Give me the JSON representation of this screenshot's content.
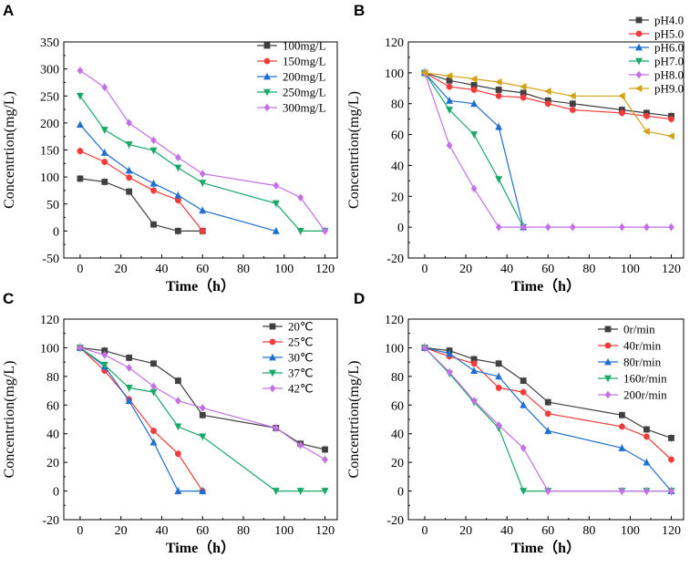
{
  "chart_data": [
    {
      "type": "line",
      "panel": "A",
      "xlabel": "Time（h）",
      "ylabel": "Concentrtion(mg/L)",
      "xlim": [
        -8,
        126
      ],
      "ylim": [
        -50,
        350
      ],
      "xticks": [
        0,
        20,
        40,
        60,
        80,
        100,
        120
      ],
      "yticks": [
        -50,
        0,
        50,
        100,
        150,
        200,
        250,
        300,
        350
      ],
      "x": [
        0,
        12,
        24,
        36,
        48,
        60,
        96,
        108,
        120
      ],
      "legend": "top-right",
      "series": [
        {
          "name": "100mg/L",
          "color": "#404040",
          "marker": "square",
          "x": [
            0,
            12,
            24,
            36,
            48,
            60
          ],
          "values": [
            97,
            91,
            73,
            12,
            0,
            0
          ]
        },
        {
          "name": "150mg/L",
          "color": "#f03c3c",
          "marker": "circle",
          "x": [
            0,
            12,
            24,
            36,
            48,
            60
          ],
          "values": [
            148,
            128,
            99,
            75,
            57,
            0
          ]
        },
        {
          "name": "200mg/L",
          "color": "#1f6fd0",
          "marker": "triangle-up",
          "x": [
            0,
            12,
            24,
            36,
            48,
            60,
            96
          ],
          "values": [
            197,
            145,
            112,
            88,
            66,
            38,
            0
          ]
        },
        {
          "name": "250mg/L",
          "color": "#19a867",
          "marker": "triangle-down",
          "x": [
            0,
            12,
            24,
            36,
            48,
            60,
            96,
            108,
            120
          ],
          "values": [
            250,
            187,
            160,
            149,
            117,
            89,
            51,
            0,
            0
          ]
        },
        {
          "name": "300mg/L",
          "color": "#c46fe6",
          "marker": "diamond",
          "x": [
            0,
            12,
            24,
            36,
            48,
            60,
            96,
            108,
            120
          ],
          "values": [
            297,
            266,
            200,
            168,
            136,
            106,
            84,
            62,
            0
          ]
        }
      ]
    },
    {
      "type": "line",
      "panel": "B",
      "xlabel": "Time（h）",
      "ylabel": "Concentrtion(mg/L)",
      "xlim": [
        -8,
        126
      ],
      "ylim": [
        -20,
        120
      ],
      "xticks": [
        0,
        20,
        40,
        60,
        80,
        100,
        120
      ],
      "yticks": [
        -20,
        0,
        20,
        40,
        60,
        80,
        100,
        120
      ],
      "legend": "top-right",
      "series": [
        {
          "name": "pH4.0",
          "color": "#404040",
          "marker": "square",
          "x": [
            0,
            12,
            24,
            36,
            48,
            60,
            72,
            96,
            108,
            120
          ],
          "values": [
            100,
            95,
            92,
            89,
            87,
            82,
            80,
            76,
            74,
            72
          ]
        },
        {
          "name": "pH5.0",
          "color": "#f03c3c",
          "marker": "circle",
          "x": [
            0,
            12,
            24,
            36,
            48,
            60,
            72,
            96,
            108,
            120
          ],
          "values": [
            100,
            91,
            89,
            85,
            84,
            80,
            76,
            74,
            72,
            70
          ]
        },
        {
          "name": "pH6.0",
          "color": "#1f6fd0",
          "marker": "triangle-up",
          "x": [
            0,
            12,
            24,
            36,
            48
          ],
          "values": [
            100,
            82,
            80,
            65,
            0
          ]
        },
        {
          "name": "pH7.0",
          "color": "#19a867",
          "marker": "triangle-down",
          "x": [
            0,
            12,
            24,
            36,
            48
          ],
          "values": [
            100,
            76,
            60,
            31,
            0
          ]
        },
        {
          "name": "pH8.0",
          "color": "#c46fe6",
          "marker": "diamond",
          "x": [
            0,
            12,
            24,
            36,
            48,
            60,
            72,
            96,
            108,
            120
          ],
          "values": [
            100,
            53,
            25,
            0,
            0,
            0,
            0,
            0,
            0,
            0
          ]
        },
        {
          "name": "pH9.0",
          "color": "#d3a116",
          "marker": "triangle-left",
          "x": [
            0,
            12,
            24,
            36,
            48,
            60,
            72,
            96,
            108,
            120
          ],
          "values": [
            100,
            98,
            96,
            94,
            91,
            88,
            85,
            85,
            62,
            59
          ]
        }
      ]
    },
    {
      "type": "line",
      "panel": "C",
      "xlabel": "Time（h）",
      "ylabel": "Concentrtion(mg/L)",
      "xlim": [
        -8,
        126
      ],
      "ylim": [
        -20,
        120
      ],
      "xticks": [
        0,
        20,
        40,
        60,
        80,
        100,
        120
      ],
      "yticks": [
        -20,
        0,
        20,
        40,
        60,
        80,
        100,
        120
      ],
      "legend": "top-right",
      "series": [
        {
          "name": "20℃",
          "color": "#404040",
          "marker": "square",
          "x": [
            0,
            12,
            24,
            36,
            48,
            60,
            96,
            108,
            120
          ],
          "values": [
            100,
            98,
            93,
            89,
            77,
            53,
            44,
            33,
            29
          ]
        },
        {
          "name": "25℃",
          "color": "#f03c3c",
          "marker": "circle",
          "x": [
            0,
            12,
            24,
            36,
            48,
            60
          ],
          "values": [
            100,
            84,
            64,
            42,
            26,
            0
          ]
        },
        {
          "name": "30℃",
          "color": "#1f6fd0",
          "marker": "triangle-up",
          "x": [
            0,
            12,
            24,
            36,
            48,
            60
          ],
          "values": [
            100,
            87,
            63,
            34,
            0,
            0
          ]
        },
        {
          "name": "37℃",
          "color": "#19a867",
          "marker": "triangle-down",
          "x": [
            0,
            12,
            24,
            36,
            48,
            60,
            96,
            108,
            120
          ],
          "values": [
            100,
            88,
            72,
            69,
            45,
            38,
            0,
            0,
            0
          ]
        },
        {
          "name": "42℃",
          "color": "#c46fe6",
          "marker": "diamond",
          "x": [
            0,
            12,
            24,
            36,
            48,
            60,
            96,
            108,
            120
          ],
          "values": [
            100,
            95,
            86,
            73,
            63,
            58,
            44,
            32,
            22
          ]
        }
      ]
    },
    {
      "type": "line",
      "panel": "D",
      "xlabel": "Time（h）",
      "ylabel": "Concentrtion(mg/L)",
      "xlim": [
        -8,
        126
      ],
      "ylim": [
        -20,
        120
      ],
      "xticks": [
        0,
        20,
        40,
        60,
        80,
        100,
        120
      ],
      "yticks": [
        -20,
        0,
        20,
        40,
        60,
        80,
        100,
        120
      ],
      "legend": "right",
      "series": [
        {
          "name": "0r/min",
          "color": "#404040",
          "marker": "square",
          "x": [
            0,
            12,
            24,
            36,
            48,
            60,
            96,
            108,
            120
          ],
          "values": [
            100,
            98,
            92,
            89,
            77,
            62,
            53,
            43,
            37
          ]
        },
        {
          "name": "40r/min",
          "color": "#f03c3c",
          "marker": "circle",
          "x": [
            0,
            12,
            24,
            36,
            48,
            60,
            96,
            108,
            120
          ],
          "values": [
            100,
            94,
            89,
            72,
            69,
            54,
            45,
            38,
            22
          ]
        },
        {
          "name": "80r/min",
          "color": "#1f6fd0",
          "marker": "triangle-up",
          "x": [
            0,
            12,
            24,
            36,
            48,
            60,
            96,
            108,
            120
          ],
          "values": [
            100,
            96,
            84,
            80,
            60,
            42,
            30,
            20,
            0
          ]
        },
        {
          "name": "160r/min",
          "color": "#19a867",
          "marker": "triangle-down",
          "x": [
            0,
            12,
            24,
            36,
            48,
            60,
            96,
            108,
            120
          ],
          "values": [
            100,
            82,
            62,
            44,
            0,
            0,
            0,
            0,
            0
          ]
        },
        {
          "name": "200r/min",
          "color": "#c46fe6",
          "marker": "diamond",
          "x": [
            0,
            12,
            24,
            36,
            48,
            60,
            96,
            108,
            120
          ],
          "values": [
            100,
            83,
            63,
            46,
            30,
            0,
            0,
            0,
            0
          ]
        }
      ]
    }
  ]
}
